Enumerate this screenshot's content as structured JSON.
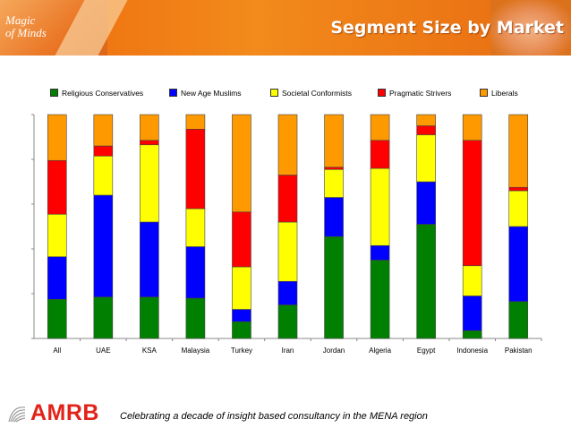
{
  "header": {
    "logo_text": "Magic\nof Minds",
    "title": "Segment Size by Market"
  },
  "colors": {
    "header_orange": "#ee6a0d",
    "religious_conservatives": "#008000",
    "new_age_muslims": "#0000ff",
    "societal_conformists": "#ffff00",
    "pragmatic_strivers": "#ff0000",
    "liberals": "#ff9900",
    "brand_red": "#e2231a"
  },
  "chart_data": {
    "type": "bar",
    "stacked": true,
    "percent": true,
    "title": "",
    "xlabel": "",
    "ylabel": "",
    "ylim": [
      0,
      100
    ],
    "grid": false,
    "legend_position": "top",
    "categories": [
      "All",
      "UAE",
      "KSA",
      "Malaysia",
      "Turkey",
      "Iran",
      "Jordan",
      "Algeria",
      "Egypt",
      "Indonesia",
      "Pakistan"
    ],
    "series": [
      {
        "name": "Religious Conservatives",
        "color": "#008000",
        "values": [
          17.5,
          18.5,
          18.5,
          18,
          7.5,
          15,
          45.5,
          35,
          51,
          3.5,
          16.5
        ]
      },
      {
        "name": "New Age Muslims",
        "color": "#0000ff",
        "values": [
          19,
          45.5,
          33.5,
          23,
          5.5,
          10.5,
          17.5,
          6.5,
          19,
          15.5,
          33.5
        ]
      },
      {
        "name": "Societal Conformists",
        "color": "#ffff00",
        "values": [
          19,
          17.5,
          34.5,
          17,
          19,
          26.5,
          12.5,
          34.5,
          21,
          13.5,
          16
        ]
      },
      {
        "name": "Pragmatic Strivers",
        "color": "#ff0000",
        "values": [
          24,
          4.5,
          2,
          35.5,
          24.5,
          21,
          1,
          12.5,
          4,
          56,
          1.5
        ]
      },
      {
        "name": "Liberals",
        "color": "#ff9900",
        "values": [
          20.5,
          14,
          11.5,
          6.5,
          43.5,
          27,
          23.5,
          11.5,
          5,
          11.5,
          32.5
        ]
      }
    ]
  },
  "footer": {
    "brand": "AMRB",
    "icon": "amrb-swirl-icon",
    "tagline": "Celebrating a decade of insight based consultancy in the MENA region"
  }
}
